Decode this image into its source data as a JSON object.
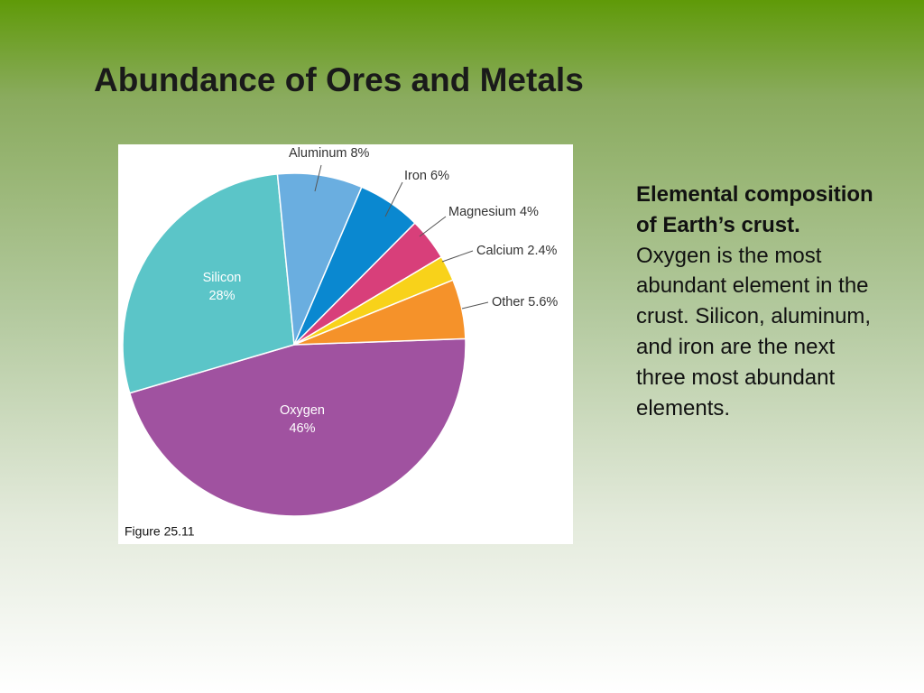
{
  "title": "Abundance of Ores and Metals",
  "chart_data": {
    "type": "pie",
    "categories": [
      "Oxygen",
      "Silicon",
      "Aluminum",
      "Iron",
      "Magnesium",
      "Calcium",
      "Other"
    ],
    "values": [
      46,
      28,
      8,
      6,
      4,
      2.4,
      5.6
    ],
    "value_labels": [
      "46%",
      "28%",
      "8%",
      "6%",
      "4%",
      "2.4%",
      "5.6%"
    ],
    "colors": [
      "#a052a0",
      "#5bc5c8",
      "#6aaee0",
      "#0a88d0",
      "#d83f7a",
      "#f8d21a",
      "#f5922a"
    ]
  },
  "figure_label": "Figure 25.11",
  "caption": {
    "bold": "Elemental composition of Earth’s crust.",
    "text": "Oxygen is the most abundant element in the crust. Silicon, aluminum, and iron are the next three most abundant elements."
  }
}
